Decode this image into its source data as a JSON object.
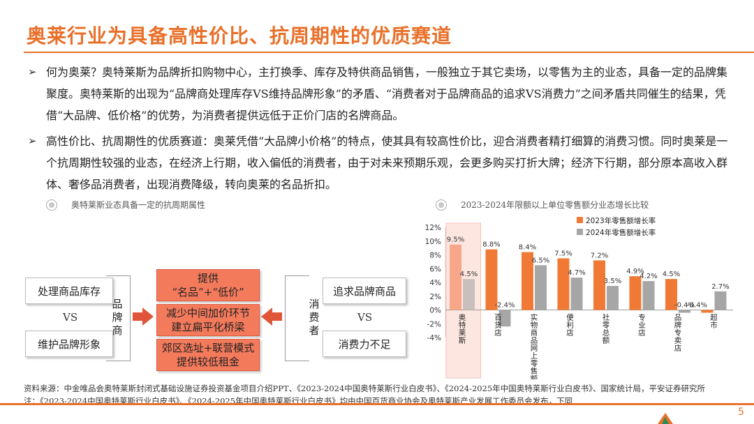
{
  "title": "奥莱行业为具备高性价比、抗周期性的优质赛道",
  "bullets": [
    {
      "text": "何为奥莱？奥特莱斯为品牌折扣购物中心，主打换季、库存及特供商品销售，一般独立于其它卖场，以零售为主的业态，具备一定的品牌集聚度。奥特莱斯的出现为“品牌商处理库存VS维持品牌形象”的矛盾、“消费者对于品牌商品的追求VS消费力”之间矛盾共同催生的结果，凭借“大品牌、低价格”的优势，为消费者提供远低于正价门店的名牌商品。"
    },
    {
      "text": "高性价比、抗周期性的优质赛道：奥莱凭借“大品牌小价格”的特点，使其具有较高性价比，迎合消费者精打细算的消费习惯。同时奥莱是一个抗周期性较强的业态，在经济上行期，收入偏低的消费者，由于对未来预期乐观，会更多购买打折大牌；经济下行期，部分原本高收入群体、奢侈品消费者，出现消费降级，转向奥莱的名品折扣。"
    }
  ],
  "left_section": {
    "heading": "奥特莱斯业态具备一定的抗周期属性",
    "brand_side": {
      "top": "处理商品库存",
      "vs": "VS",
      "bottom": "维护品牌形象",
      "label": "品牌商"
    },
    "center": [
      {
        "line1": "提供",
        "line2": "“名品”+“低价”"
      },
      {
        "line1": "减少中间加价环节",
        "line2": "建立扁平化桥梁"
      },
      {
        "line1": "郊区选址+联营模式",
        "line2": "提供较低租金"
      }
    ],
    "consumer_side": {
      "label": "消费者",
      "top": "追求品牌商品",
      "vs": "VS",
      "bottom": "消费力不足"
    }
  },
  "right_section": {
    "heading": "2023-2024年限额以上单位零售额分业态增长比较"
  },
  "chart_data": {
    "type": "bar",
    "title": "2023-2024年限额以上单位零售额分业态增长比较",
    "categories": [
      "奥特莱斯",
      "百货店",
      "实物商品网上零售额",
      "便利店",
      "社零总额",
      "专业店",
      "品牌专卖店",
      "超市"
    ],
    "series": [
      {
        "name": "2023年零售额增长率",
        "values": [
          9.5,
          8.8,
          8.4,
          7.5,
          7.2,
          4.9,
          4.5,
          -0.4
        ],
        "color": "#f07a35"
      },
      {
        "name": "2024年零售额增长率",
        "values": [
          4.5,
          -2.4,
          6.5,
          4.7,
          3.5,
          4.2,
          -0.4,
          2.7
        ],
        "color": "#a6a6a6"
      }
    ],
    "value_labels": [
      [
        "9.5%",
        "8.8%",
        "8.4%",
        "7.5%",
        "7.2%",
        "4.9%",
        "4.5%",
        "-0.4%"
      ],
      [
        "4.5%",
        "-2.4%",
        "6.5%",
        "4.7%",
        "3.5%",
        "4.2%",
        "-0.4%",
        "2.7%"
      ]
    ],
    "ylim": [
      -4,
      12
    ],
    "yticks": [
      "12%",
      "10%",
      "8%",
      "6%",
      "4%",
      "2%",
      "0%",
      "-2%",
      "-4%"
    ],
    "ytick_values": [
      12,
      10,
      8,
      6,
      4,
      2,
      0,
      -2,
      -4
    ],
    "legend_position": "top-right",
    "highlight_category": "奥特莱斯",
    "highlight_color": "#fde6e0"
  },
  "source_note": "资料来源：中金唯品会奥特莱斯封闭式基础设施证券投资基金项目介绍PPT、《2023-2024中国奥特莱斯行业白皮书》、《2024-2025年中国奥特莱斯行业白皮书》、国家统计局，平安证券研究所 注：《2023-2024中国奥特莱斯行业白皮书》、《2024-2025年中国奥特莱斯行业白皮书》均由中国百货商业协会及奥特莱斯产业发展工作委员会发布，下同",
  "page_number": "5",
  "colors": {
    "accent": "#e8702a",
    "bar_2023": "#f07a35",
    "bar_2024": "#a6a6a6",
    "center_box": "#f47a5c",
    "arrow": "#e0553a"
  },
  "icons": {
    "bullet": "triangle-bullet-icon",
    "section": "radio-dot-icon",
    "logo": "ping-an-logo-icon"
  }
}
